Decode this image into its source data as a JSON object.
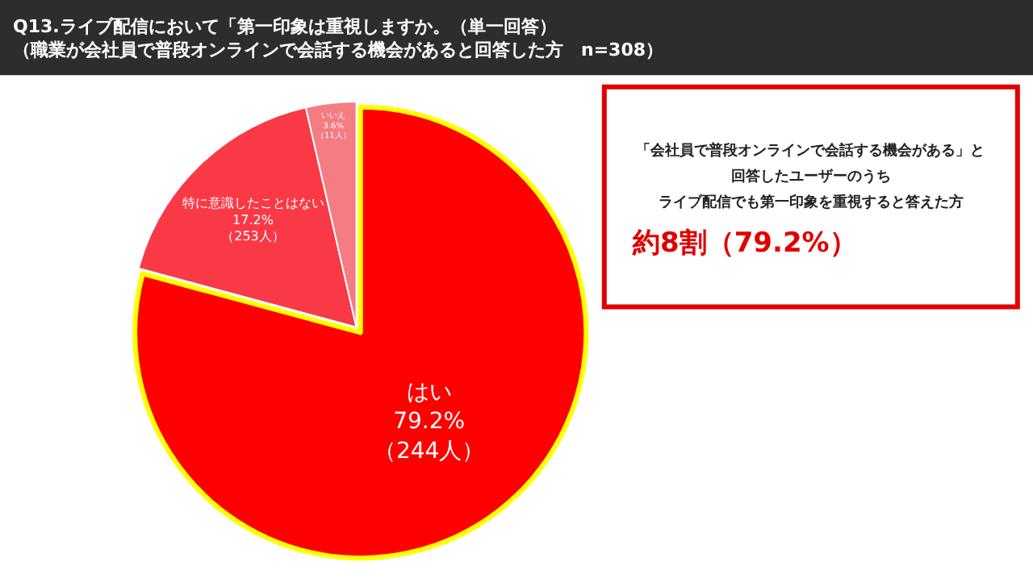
{
  "chart_data": {
    "type": "pie",
    "title": "Q13.ライブ配信において「第一印象は重視しますか。（単一回答）",
    "subtitle": "（職業が会社員で普段オンラインで会話する機会があると回答した方　n=308）",
    "categories": [
      "はい",
      "特に意識したことはない",
      "いいえ"
    ],
    "values": [
      79.2,
      17.2,
      3.6
    ],
    "value_labels": [
      "79.2%\n（244人）",
      "17.2%\n（253人）",
      "3.6%\n（11人）"
    ],
    "colors": [
      "#ff0000",
      "#f93a46",
      "#f47c83"
    ],
    "legend": false,
    "annotations": [
      "「会社員で普段オンラインで会話する機会がある」と",
      "回答したユーザーのうち",
      "ライブ配信でも第一印象を重視すると答えた方",
      "約8割（79.2%）"
    ]
  }
}
